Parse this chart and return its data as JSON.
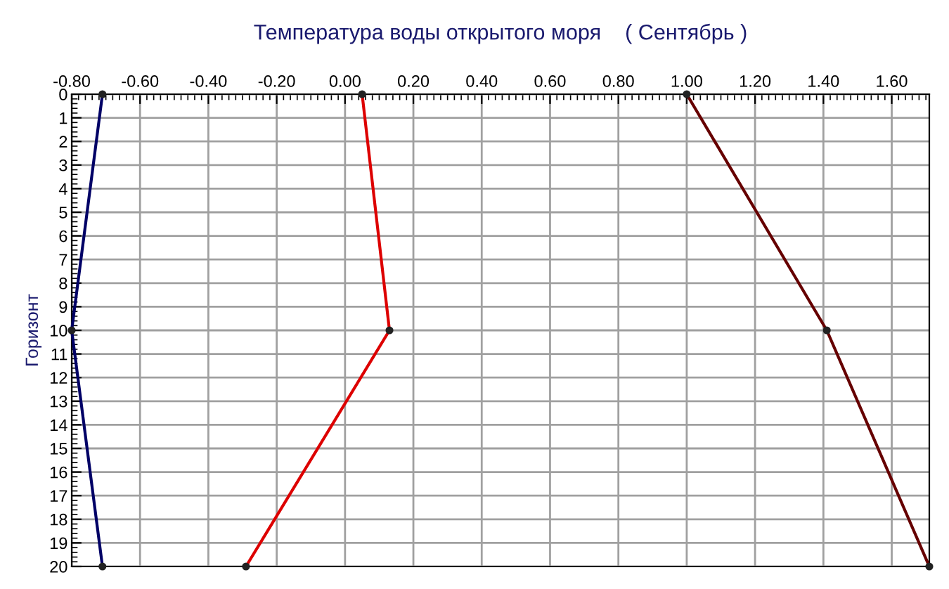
{
  "chart_data": {
    "type": "line",
    "title": "Температура воды открытого моря    ( Сентябрь )",
    "ylabel": "Горизонт",
    "series": [
      {
        "color": "#000066",
        "x": [
          -0.71,
          -0.8,
          -0.71
        ],
        "values": [
          0,
          10,
          20
        ]
      },
      {
        "color": "#dd0000",
        "x": [
          0.05,
          0.13,
          -0.29
        ],
        "values": [
          0,
          10,
          20
        ]
      },
      {
        "color": "#660000",
        "x": [
          1.0,
          1.41,
          1.71
        ],
        "values": [
          0,
          10,
          20
        ]
      }
    ],
    "xlim": [
      -0.8,
      1.71
    ],
    "xticks": [
      {
        "value": -0.8,
        "label": "-0.80"
      },
      {
        "value": -0.6,
        "label": "-0.60"
      },
      {
        "value": -0.4,
        "label": "-0.40"
      },
      {
        "value": -0.2,
        "label": "-0.20"
      },
      {
        "value": 0,
        "label": "0.00"
      },
      {
        "value": 0.2,
        "label": "0.20"
      },
      {
        "value": 0.4,
        "label": "0.40"
      },
      {
        "value": 0.6,
        "label": "0.60"
      },
      {
        "value": 0.8,
        "label": "0.80"
      },
      {
        "value": 1.0,
        "label": "1.00"
      },
      {
        "value": 1.2,
        "label": "1.20"
      },
      {
        "value": 1.4,
        "label": "1.40"
      },
      {
        "value": 1.6,
        "label": "1.60"
      }
    ],
    "ylim": [
      20,
      0
    ],
    "yticks": [
      0,
      1,
      2,
      3,
      4,
      5,
      6,
      7,
      8,
      9,
      10,
      11,
      12,
      13,
      14,
      15,
      16,
      17,
      18,
      19,
      20
    ],
    "grid": true,
    "marker": "circle",
    "line_style": "solid",
    "legend": false
  }
}
